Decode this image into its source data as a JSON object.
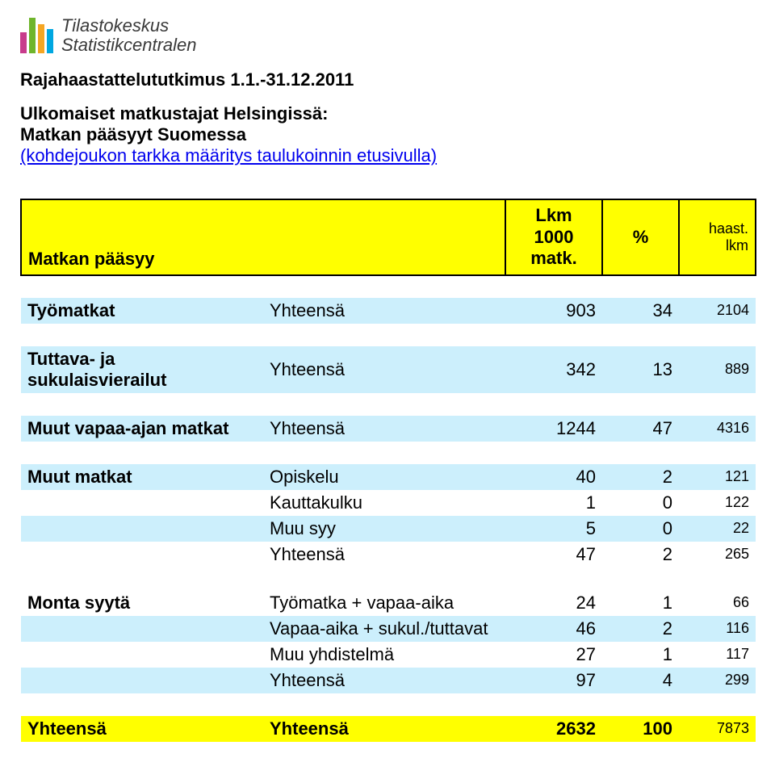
{
  "logo": {
    "line1": "Tilastokeskus",
    "line2": "Statistikcentralen",
    "bar_colors": [
      "#c83c8c",
      "#6fb52c",
      "#f5a623",
      "#00a7e1"
    ],
    "bar_heights": [
      26,
      44,
      36,
      30
    ]
  },
  "titles": {
    "t1": "Rajahaastattelututkimus 1.1.-31.12.2011",
    "t2": "Ulkomaiset matkustajat Helsingissä:",
    "t3": "Matkan pääsyyt Suomessa",
    "link": "(kohdejoukon tarkka määritys taulukoinnin etusivulla)"
  },
  "header": {
    "label": "Matkan pääsyy",
    "col3_l1": "Lkm",
    "col3_l2": "1000",
    "col3_l3": "matk.",
    "col4": "%",
    "col5_l1": "haast.",
    "col5_l2": "lkm"
  },
  "stripe_color": "#cceffc",
  "sections": [
    {
      "label": "Työmatkat",
      "rows": [
        {
          "c2": "Yhteensä",
          "c3": "903",
          "c4": "34",
          "c5": "2104",
          "stripe": true
        }
      ]
    },
    {
      "label": "Tuttava- ja sukulaisvierailut",
      "rows": [
        {
          "c2": "Yhteensä",
          "c3": "342",
          "c4": "13",
          "c5": "889",
          "stripe": true
        }
      ]
    },
    {
      "label": "Muut vapaa-ajan matkat",
      "rows": [
        {
          "c2": "Yhteensä",
          "c3": "1244",
          "c4": "47",
          "c5": "4316",
          "stripe": true
        }
      ]
    },
    {
      "label": "Muut matkat",
      "rows": [
        {
          "c2": "Opiskelu",
          "c3": "40",
          "c4": "2",
          "c5": "121",
          "stripe": true
        },
        {
          "c2": "Kauttakulku",
          "c3": "1",
          "c4": "0",
          "c5": "122",
          "stripe": false
        },
        {
          "c2": "Muu syy",
          "c3": "5",
          "c4": "0",
          "c5": "22",
          "stripe": true
        },
        {
          "c2": "Yhteensä",
          "c3": "47",
          "c4": "2",
          "c5": "265",
          "stripe": false
        }
      ]
    },
    {
      "label": "Monta syytä",
      "rows": [
        {
          "c2": "Työmatka + vapaa-aika",
          "c3": "24",
          "c4": "1",
          "c5": "66",
          "stripe": false
        },
        {
          "c2": "Vapaa-aika + sukul./tuttavat",
          "c3": "46",
          "c4": "2",
          "c5": "116",
          "stripe": true
        },
        {
          "c2": "Muu yhdistelmä",
          "c3": "27",
          "c4": "1",
          "c5": "117",
          "stripe": false
        },
        {
          "c2": "Yhteensä",
          "c3": "97",
          "c4": "4",
          "c5": "299",
          "stripe": true
        }
      ]
    }
  ],
  "total": {
    "c1": "Yhteensä",
    "c2": "Yhteensä",
    "c3": "2632",
    "c4": "100",
    "c5": "7873"
  }
}
